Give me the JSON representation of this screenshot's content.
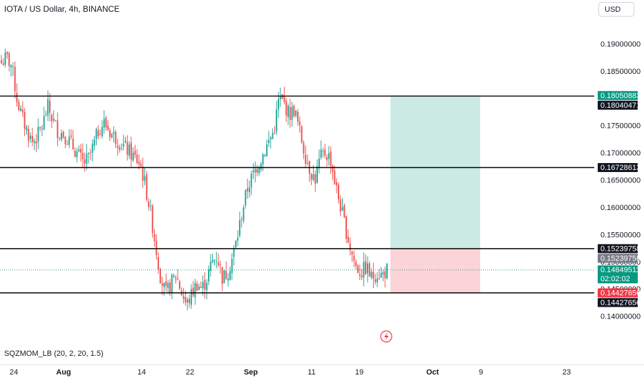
{
  "header": {
    "title": "IOTA / US Dollar, 4h, BINANCE",
    "currency": "USD"
  },
  "indicator": {
    "label": "SQZMOM_LB (20, 2, 20, 1.5)"
  },
  "colors": {
    "up": "#26a69a",
    "down": "#ef5350",
    "target_zone": "#cdebe5",
    "stop_zone": "#fad4d6",
    "price_line": "#26a69a",
    "level_line": "#000000"
  },
  "chart_data": {
    "type": "candlestick",
    "title": "IOTA / US Dollar, 4h, BINANCE",
    "ylim": [
      0.135,
      0.1945
    ],
    "y_ticks": [
      "0.19000000",
      "0.18500000",
      "0.17500000",
      "0.17000000",
      "0.16500000",
      "0.16000000",
      "0.15500000",
      "0.15000000",
      "0.14500000",
      "0.14000000"
    ],
    "x_ticks": [
      "24",
      "Aug",
      "14",
      "22",
      "Sep",
      "11",
      "19",
      "Oct",
      "9",
      "23"
    ],
    "x_ticks_bold": [
      "Aug",
      "Sep",
      "Oct"
    ],
    "grid": false,
    "levels": [
      {
        "value": 0.18040471,
        "label": "0.18040471"
      },
      {
        "value": 0.16728613,
        "label": "0.16728613"
      },
      {
        "value": 0.15239758,
        "label": "0.15239758"
      },
      {
        "value": 0.14427656,
        "label": "0.14427656"
      }
    ],
    "price_badges": [
      {
        "value": 0.18050883,
        "label": "0.18050883",
        "color": "#089981"
      },
      {
        "value": 0.18040471,
        "label": "0.18040471",
        "color": "#131722"
      },
      {
        "value": 0.16728613,
        "label": "0.16728613",
        "color": "#131722"
      },
      {
        "value": 0.15239758,
        "label": "0.15239758",
        "color": "#131722"
      },
      {
        "value": 0.15239758,
        "label": "0.15239758",
        "color": "#787b86"
      },
      {
        "value": 0.14849511,
        "label": "0.14849511",
        "color": "#089981",
        "sub": "02:02:02"
      },
      {
        "value": 0.14427656,
        "label": "0.14427656",
        "color": "#f23645"
      },
      {
        "value": 0.14427656,
        "label": "0.14427656",
        "color": "#131722"
      }
    ],
    "current_price": 0.14849511,
    "position": {
      "entry": 0.15239758,
      "target": 0.18050883,
      "stop": 0.14427656
    },
    "path": [
      0.1865,
      0.1875,
      0.186,
      0.18,
      0.1765,
      0.174,
      0.172,
      0.173,
      0.175,
      0.1785,
      0.176,
      0.174,
      0.1735,
      0.1725,
      0.171,
      0.1695,
      0.168,
      0.169,
      0.1715,
      0.1745,
      0.1755,
      0.174,
      0.173,
      0.172,
      0.171,
      0.17,
      0.169,
      0.168,
      0.164,
      0.159,
      0.153,
      0.147,
      0.144,
      0.146,
      0.1475,
      0.1445,
      0.142,
      0.144,
      0.146,
      0.145,
      0.147,
      0.15,
      0.151,
      0.147,
      0.148,
      0.151,
      0.155,
      0.16,
      0.164,
      0.166,
      0.168,
      0.17,
      0.172,
      0.174,
      0.18,
      0.179,
      0.177,
      0.178,
      0.174,
      0.17,
      0.167,
      0.165,
      0.169,
      0.17,
      0.169,
      0.164,
      0.16,
      0.156,
      0.152,
      0.149,
      0.148,
      0.149,
      0.147,
      0.148,
      0.1475,
      0.1485
    ]
  }
}
